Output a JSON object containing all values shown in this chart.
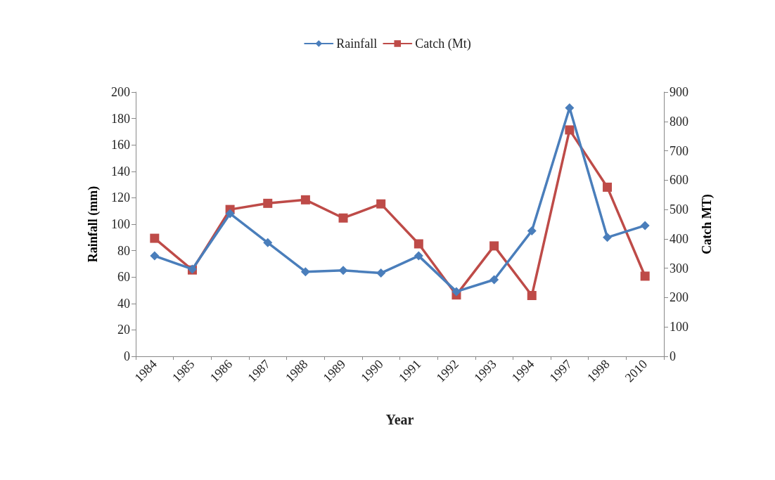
{
  "chart_data": {
    "type": "line",
    "xlabel": "Year",
    "ylabel": "Rainfall (mm)",
    "y2label": "Catch MT)",
    "categories": [
      "1984",
      "1985",
      "1986",
      "1987",
      "1988",
      "1989",
      "1990",
      "1991",
      "1992",
      "1993",
      "1994",
      "1997",
      "1998",
      "2010"
    ],
    "series": [
      {
        "name": "Rainfall",
        "color": "#4a7ebb",
        "marker": "diamond",
        "values": [
          76,
          66,
          108,
          86,
          64,
          65,
          63,
          76,
          49,
          58,
          95,
          188,
          90,
          99
        ]
      },
      {
        "name": "Catch (Mt)",
        "color": "#be4b48",
        "marker": "square",
        "axis": "y2",
        "values": [
          402,
          294,
          500,
          521,
          533,
          471,
          519,
          383,
          209,
          376,
          207,
          771,
          576,
          273
        ]
      }
    ],
    "ylim": [
      0,
      200
    ],
    "yticks": [
      0,
      20,
      40,
      60,
      80,
      100,
      120,
      140,
      160,
      180,
      200
    ],
    "y2lim": [
      0,
      900
    ],
    "y2ticks": [
      0,
      100,
      200,
      300,
      400,
      500,
      600,
      700,
      800,
      900
    ],
    "grid": false,
    "legend": "top",
    "line_style": "solid"
  }
}
